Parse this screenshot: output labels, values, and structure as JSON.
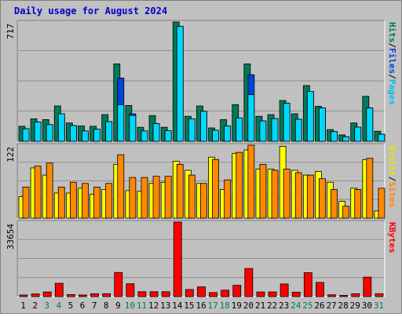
{
  "chart_data": [
    {
      "type": "bar",
      "title": "Daily usage for August 2024",
      "categories": [
        "1",
        "2",
        "3",
        "4",
        "5",
        "6",
        "7",
        "8",
        "9",
        "10",
        "11",
        "12",
        "13",
        "14",
        "15",
        "16",
        "17",
        "18",
        "19",
        "20",
        "21",
        "22",
        "23",
        "24",
        "25",
        "26",
        "27",
        "28",
        "29",
        "30",
        "31"
      ],
      "ylabel_max": "717",
      "ylim": [
        0,
        717
      ],
      "grid": true,
      "legend": {
        "placement": "right-vertical",
        "items": [
          "Pages",
          "Files",
          "Hits"
        ],
        "separator": "/"
      },
      "series": [
        {
          "name": "Hits",
          "color": "#007a5a",
          "values": [
            90,
            135,
            130,
            212,
            110,
            92,
            90,
            160,
            465,
            215,
            84,
            154,
            84,
            717,
            150,
            212,
            80,
            130,
            220,
            465,
            150,
            160,
            245,
            165,
            335,
            210,
            70,
            38,
            110,
            270,
            60
          ]
        },
        {
          "name": "Files",
          "color": "#0044dd",
          "values": [
            75,
            115,
            100,
            140,
            94,
            62,
            72,
            118,
            380,
            165,
            62,
            106,
            64,
            690,
            135,
            180,
            66,
            92,
            140,
            400,
            122,
            136,
            228,
            132,
            300,
            200,
            58,
            27,
            85,
            200,
            42
          ]
        },
        {
          "name": "Pages",
          "color": "#00d8ff",
          "values": [
            75,
            115,
            100,
            165,
            94,
            62,
            72,
            118,
            220,
            155,
            62,
            106,
            64,
            690,
            135,
            180,
            66,
            92,
            140,
            280,
            122,
            136,
            228,
            132,
            300,
            200,
            58,
            27,
            85,
            200,
            42
          ]
        }
      ]
    },
    {
      "type": "bar",
      "ylabel_max": "122",
      "ylim": [
        0,
        122
      ],
      "grid": true,
      "legend": {
        "placement": "right-vertical",
        "items": [
          "Sites",
          "Visits"
        ],
        "separator": "/"
      },
      "series": [
        {
          "name": "Visits",
          "color": "#ffff00",
          "values": [
            36,
            84,
            72,
            42,
            42,
            50,
            40,
            48,
            90,
            46,
            45,
            58,
            60,
            95,
            80,
            58,
            102,
            48,
            108,
            114,
            82,
            82,
            120,
            80,
            72,
            78,
            60,
            28,
            50,
            98,
            12
          ]
        },
        {
          "name": "Sites",
          "color": "#ff8800",
          "values": [
            52,
            87,
            92,
            52,
            60,
            58,
            52,
            58,
            106,
            68,
            68,
            70,
            70,
            90,
            72,
            58,
            98,
            64,
            110,
            122,
            90,
            80,
            82,
            76,
            72,
            66,
            48,
            20,
            48,
            100,
            50
          ]
        }
      ]
    },
    {
      "type": "bar",
      "ylabel_max": "33654",
      "ylim": [
        0,
        33654
      ],
      "grid": true,
      "legend": {
        "placement": "right-vertical",
        "items": [
          "KBytes"
        ]
      },
      "series": [
        {
          "name": "KBytes",
          "color": "#ff0000",
          "values": [
            720,
            1200,
            2100,
            6000,
            900,
            720,
            1300,
            1300,
            10900,
            5800,
            2200,
            2200,
            2200,
            33654,
            3200,
            4400,
            1800,
            2900,
            5100,
            12700,
            2100,
            2100,
            5700,
            2000,
            10800,
            6400,
            800,
            550,
            1300,
            8800,
            1300
          ]
        }
      ]
    }
  ],
  "day_label_colors": {
    "weekday": "#000000",
    "weekend": "#007a5a"
  },
  "weekend_days": [
    "3",
    "4",
    "10",
    "11",
    "17",
    "18",
    "24",
    "25",
    "31"
  ],
  "colors": {
    "panel": "#c0c0c0",
    "frame_bg": "#ffffff",
    "border": "#808080",
    "title": "#0000cc"
  }
}
